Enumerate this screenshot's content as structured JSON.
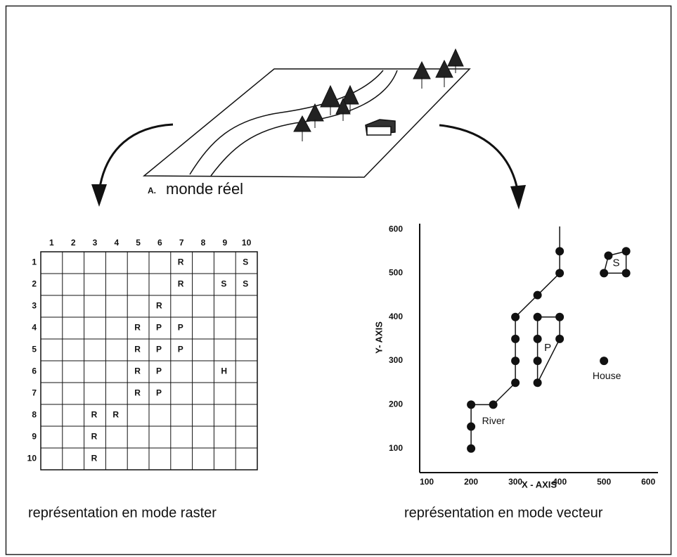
{
  "real_world": {
    "prefix": "A.",
    "label": "monde réel"
  },
  "raster": {
    "columns": [
      "1",
      "2",
      "3",
      "4",
      "5",
      "6",
      "7",
      "8",
      "9",
      "10"
    ],
    "rows": [
      "1",
      "2",
      "3",
      "4",
      "5",
      "6",
      "7",
      "8",
      "9",
      "10"
    ],
    "cells": [
      [
        null,
        null,
        null,
        null,
        null,
        null,
        "R",
        null,
        null,
        "S"
      ],
      [
        null,
        null,
        null,
        null,
        null,
        null,
        "R",
        null,
        "S",
        "S"
      ],
      [
        null,
        null,
        null,
        null,
        null,
        "R",
        null,
        null,
        null,
        null
      ],
      [
        null,
        null,
        null,
        null,
        "R",
        "P",
        "P",
        null,
        null,
        null
      ],
      [
        null,
        null,
        null,
        null,
        "R",
        "P",
        "P",
        null,
        null,
        null
      ],
      [
        null,
        null,
        null,
        null,
        "R",
        "P",
        null,
        null,
        "H",
        null
      ],
      [
        null,
        null,
        null,
        null,
        "R",
        "P",
        null,
        null,
        null,
        null
      ],
      [
        null,
        null,
        "R",
        "R",
        null,
        null,
        null,
        null,
        null,
        null
      ],
      [
        null,
        null,
        "R",
        null,
        null,
        null,
        null,
        null,
        null,
        null
      ],
      [
        null,
        null,
        "R",
        null,
        null,
        null,
        null,
        null,
        null,
        null
      ]
    ],
    "caption": "représentation en mode raster"
  },
  "vector": {
    "x_label": "X - AXIS",
    "y_label": "Y- AXIS",
    "xlim": [
      84,
      622
    ],
    "ylim": [
      45,
      613
    ],
    "xticks": [
      100,
      200,
      300,
      400,
      500,
      600
    ],
    "yticks": [
      100,
      200,
      300,
      400,
      500,
      600
    ],
    "river": {
      "label": "River",
      "x": [
        200,
        200,
        200,
        250,
        300,
        300,
        300,
        300,
        350,
        400,
        400
      ],
      "y": [
        100,
        150,
        200,
        200,
        250,
        300,
        350,
        400,
        450,
        500,
        550
      ]
    },
    "parcel_p": {
      "label": "P",
      "x": [
        350,
        400,
        400,
        350,
        350,
        350
      ],
      "y": [
        400,
        400,
        350,
        250,
        300,
        350
      ]
    },
    "parcel_s": {
      "label": "S",
      "x": [
        510,
        550,
        550,
        500
      ],
      "y": [
        540,
        550,
        500,
        500
      ]
    },
    "house": {
      "label": "House",
      "x": 500,
      "y": 300
    },
    "caption": "représentation en mode vecteur"
  }
}
